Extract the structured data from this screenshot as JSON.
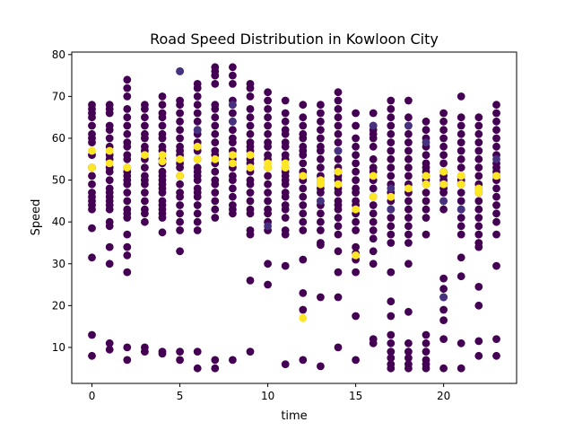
{
  "chart_data": {
    "type": "scatter",
    "title": "Road Speed Distribution in Kowloon City",
    "xlabel": "time",
    "ylabel": "Speed",
    "xlim": [
      -1.15,
      24.15
    ],
    "ylim": [
      1.4,
      80.6
    ],
    "xticks": [
      0,
      5,
      10,
      15,
      20
    ],
    "yticks": [
      10,
      20,
      30,
      40,
      50,
      60,
      70,
      80
    ],
    "grid": false,
    "legend": "none",
    "colormap": [
      "#440154",
      "#3b528b",
      "#21918c",
      "#5ec962",
      "#fde725"
    ],
    "highlight_color": "#fde725",
    "base_color": "#440154",
    "secondary_color": "#46327e",
    "series": [
      {
        "x": 0,
        "y": [
          68,
          67,
          66,
          65,
          63,
          61,
          60,
          59,
          56,
          53,
          51,
          49,
          47,
          46,
          45,
          44,
          43,
          38.5,
          31.5,
          13,
          8
        ]
      },
      {
        "x": 1,
        "y": [
          68,
          67,
          66,
          63,
          62,
          60,
          58,
          56,
          55,
          53,
          52,
          50,
          48,
          47,
          46,
          45,
          44,
          43,
          40,
          39,
          34,
          30,
          11,
          9.5
        ]
      },
      {
        "x": 2,
        "y": [
          74,
          72,
          70,
          67,
          65,
          63,
          61,
          59,
          58,
          56,
          55,
          53,
          52,
          51,
          50,
          49,
          47,
          45,
          43,
          42,
          41,
          37,
          34,
          32,
          28,
          10,
          7
        ]
      },
      {
        "x": 3,
        "y": [
          68,
          67,
          65,
          63,
          61,
          60,
          58,
          57,
          55,
          53,
          51,
          50,
          49,
          47,
          45,
          43,
          42,
          40,
          10,
          9
        ]
      },
      {
        "x": 4,
        "y": [
          70,
          68,
          66,
          65,
          63,
          61,
          60,
          58,
          57,
          55,
          54,
          52,
          51,
          50,
          49,
          48,
          47,
          45,
          44,
          43,
          42,
          41,
          37.5,
          9,
          8.5
        ]
      },
      {
        "x": 5,
        "y": [
          76,
          69,
          68,
          66,
          64,
          62,
          60,
          58,
          57,
          56,
          54,
          53,
          51,
          49,
          47,
          46,
          44,
          42,
          40,
          38,
          33,
          9,
          7
        ]
      },
      {
        "x": 6,
        "y": [
          73,
          72,
          70,
          68,
          66,
          64,
          62,
          61,
          59,
          58,
          57,
          55,
          53,
          52,
          51,
          50,
          48,
          47,
          46,
          44,
          42,
          40,
          38,
          9,
          5
        ]
      },
      {
        "x": 7,
        "y": [
          77,
          76,
          75,
          73,
          68,
          67,
          65,
          63,
          61,
          59,
          57,
          56,
          54,
          52,
          50,
          49,
          47,
          45,
          43,
          41,
          7,
          5
        ]
      },
      {
        "x": 8,
        "y": [
          77,
          75,
          73,
          69,
          68,
          66,
          64,
          62,
          60,
          59,
          57,
          55,
          54,
          53,
          51,
          50,
          48,
          46,
          44,
          43,
          42,
          7
        ]
      },
      {
        "x": 9,
        "y": [
          73,
          72,
          70,
          67,
          65,
          63,
          61,
          59,
          58,
          57,
          55,
          54,
          52,
          50,
          49,
          47,
          45,
          43,
          42,
          38,
          37,
          26,
          9
        ]
      },
      {
        "x": 10,
        "y": [
          71,
          69,
          67,
          65,
          63,
          61,
          59,
          58,
          56,
          55,
          53,
          51,
          49,
          47,
          45,
          43,
          42,
          40,
          38,
          30,
          25
        ]
      },
      {
        "x": 11,
        "y": [
          69,
          66,
          64,
          62,
          61,
          59,
          58,
          56,
          55,
          53,
          52,
          51,
          50,
          49,
          47,
          46,
          44,
          43,
          41,
          38,
          37,
          29.5,
          6
        ]
      },
      {
        "x": 12,
        "y": [
          68,
          65,
          63,
          61,
          60,
          58,
          57,
          56,
          54,
          52,
          51,
          50,
          48,
          46,
          44,
          42,
          40,
          38,
          31,
          23,
          19,
          7
        ]
      },
      {
        "x": 13,
        "y": [
          68,
          66,
          64,
          62,
          60,
          58,
          57,
          55,
          53,
          51,
          50,
          49,
          48,
          47,
          45,
          44,
          42,
          40,
          38,
          35,
          34.5,
          22,
          5.5
        ]
      },
      {
        "x": 14,
        "y": [
          71,
          69,
          67,
          65,
          63,
          61,
          59,
          57,
          55,
          53,
          52,
          51,
          50,
          48,
          47,
          45,
          44,
          43,
          41,
          39,
          37,
          33,
          28,
          22,
          10
        ]
      },
      {
        "x": 15,
        "y": [
          66,
          63,
          60,
          58,
          56,
          54,
          52,
          50,
          48,
          47,
          45,
          44,
          42,
          40,
          38,
          34,
          32.5,
          31,
          28,
          17.5,
          7
        ]
      },
      {
        "x": 16,
        "y": [
          66,
          63,
          62,
          61,
          60,
          58,
          55,
          53,
          52,
          50,
          48,
          46,
          44,
          42,
          40,
          38,
          36,
          33,
          30,
          12,
          11
        ]
      },
      {
        "x": 17,
        "y": [
          69,
          67,
          65,
          63,
          61,
          59,
          57,
          55,
          53,
          51,
          49,
          47,
          45,
          43,
          41,
          39,
          37,
          35,
          28,
          21,
          17.5,
          13,
          11,
          9,
          7.5,
          6,
          5
        ]
      },
      {
        "x": 18,
        "y": [
          69,
          65,
          63,
          61,
          59,
          57,
          55,
          53,
          51,
          49,
          47,
          45,
          43,
          41,
          39,
          37,
          35,
          30,
          18.5,
          11,
          9,
          7.5,
          6,
          5
        ]
      },
      {
        "x": 19,
        "y": [
          64,
          62,
          60,
          58,
          56,
          54,
          53,
          52,
          51,
          50,
          49,
          47,
          45,
          43,
          41,
          37,
          13,
          11,
          9,
          7,
          6,
          5
        ]
      },
      {
        "x": 20,
        "y": [
          66,
          64,
          62,
          60,
          58,
          56,
          54,
          52,
          51,
          50,
          49,
          48,
          47,
          45,
          43,
          26.5,
          24,
          22,
          19,
          16.5,
          12,
          5
        ]
      },
      {
        "x": 21,
        "y": [
          70,
          65,
          63,
          61,
          59,
          57,
          55,
          53,
          51,
          50,
          49,
          47,
          45,
          43,
          41,
          39,
          37,
          31.5,
          27,
          11,
          5
        ]
      },
      {
        "x": 22,
        "y": [
          65,
          63,
          61,
          59,
          57,
          55,
          53,
          51,
          49,
          48,
          47,
          45,
          43,
          41,
          39,
          37,
          35,
          34,
          24.5,
          20,
          11.5,
          8
        ]
      },
      {
        "x": 23,
        "y": [
          68,
          66,
          64,
          62,
          60,
          58,
          56,
          54,
          53,
          52,
          51,
          50,
          48,
          46,
          44,
          42,
          40,
          37,
          29.5,
          12,
          8
        ]
      }
    ],
    "highlight_points": [
      [
        0,
        57
      ],
      [
        0,
        53
      ],
      [
        1,
        57
      ],
      [
        1,
        54
      ],
      [
        2,
        53
      ],
      [
        3,
        56
      ],
      [
        4,
        56
      ],
      [
        4,
        54.5
      ],
      [
        5,
        55
      ],
      [
        5,
        51
      ],
      [
        6,
        58
      ],
      [
        6,
        55
      ],
      [
        7,
        55
      ],
      [
        8,
        56
      ],
      [
        8,
        54
      ],
      [
        9,
        56
      ],
      [
        9,
        53
      ],
      [
        10,
        54
      ],
      [
        10,
        53
      ],
      [
        11,
        54
      ],
      [
        11,
        53
      ],
      [
        12,
        51
      ],
      [
        12,
        17
      ],
      [
        13,
        50
      ],
      [
        13,
        49
      ],
      [
        14,
        52
      ],
      [
        14,
        49
      ],
      [
        15,
        43
      ],
      [
        15,
        32
      ],
      [
        16,
        51
      ],
      [
        16,
        46
      ],
      [
        17,
        46
      ],
      [
        18,
        48
      ],
      [
        19,
        51
      ],
      [
        19,
        49
      ],
      [
        20,
        52
      ],
      [
        20,
        49
      ],
      [
        21,
        51
      ],
      [
        21,
        49
      ],
      [
        22,
        48
      ],
      [
        22,
        47
      ],
      [
        23,
        51
      ]
    ],
    "secondary_points": [
      [
        5,
        76
      ],
      [
        6,
        62
      ],
      [
        8,
        68
      ],
      [
        8,
        64
      ],
      [
        10,
        39
      ],
      [
        13,
        45
      ],
      [
        14,
        57
      ],
      [
        16,
        63
      ],
      [
        17,
        48
      ],
      [
        17,
        43
      ],
      [
        18,
        63
      ],
      [
        19,
        59
      ],
      [
        20,
        22
      ],
      [
        20,
        45
      ],
      [
        21,
        43
      ],
      [
        22,
        47
      ],
      [
        23,
        55
      ]
    ]
  }
}
